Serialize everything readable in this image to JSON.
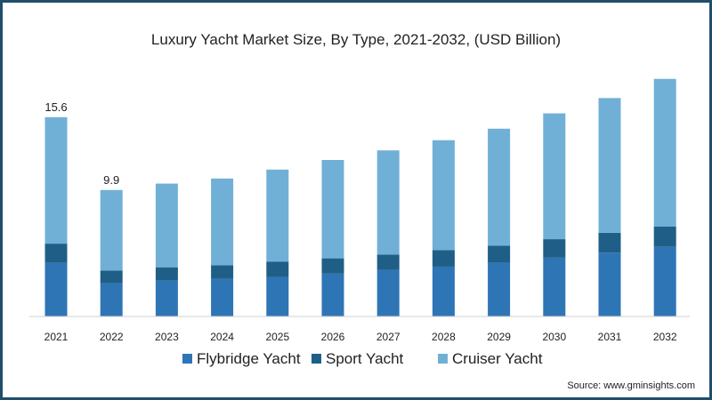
{
  "chart_data": {
    "type": "bar",
    "stacked": true,
    "title": "Luxury Yacht Market Size, By Type, 2021-2032, (USD Billion)",
    "xlabel": "",
    "ylabel": "",
    "categories": [
      "2021",
      "2022",
      "2023",
      "2024",
      "2025",
      "2026",
      "2027",
      "2028",
      "2029",
      "2030",
      "2031",
      "2032"
    ],
    "series": [
      {
        "name": "Flybridge Yacht",
        "color": "#2e75b6",
        "values": [
          4.2,
          2.6,
          2.8,
          2.95,
          3.1,
          3.35,
          3.65,
          3.9,
          4.2,
          4.6,
          5.0,
          5.45
        ]
      },
      {
        "name": "Sport Yacht",
        "color": "#1f5f87",
        "values": [
          1.5,
          1.0,
          1.05,
          1.05,
          1.2,
          1.2,
          1.2,
          1.3,
          1.35,
          1.45,
          1.55,
          1.6
        ]
      },
      {
        "name": "Cruiser Yacht",
        "color": "#70b0d7",
        "values": [
          9.9,
          6.3,
          6.55,
          6.8,
          7.2,
          7.7,
          8.15,
          8.6,
          9.15,
          9.85,
          10.55,
          11.55
        ]
      }
    ],
    "data_labels": [
      {
        "category": "2021",
        "text": "15.6"
      },
      {
        "category": "2022",
        "text": "9.9"
      }
    ],
    "ylim": [
      0,
      19
    ],
    "grid": false,
    "legend": "bottom",
    "source": "Source: www.gminsights.com"
  }
}
